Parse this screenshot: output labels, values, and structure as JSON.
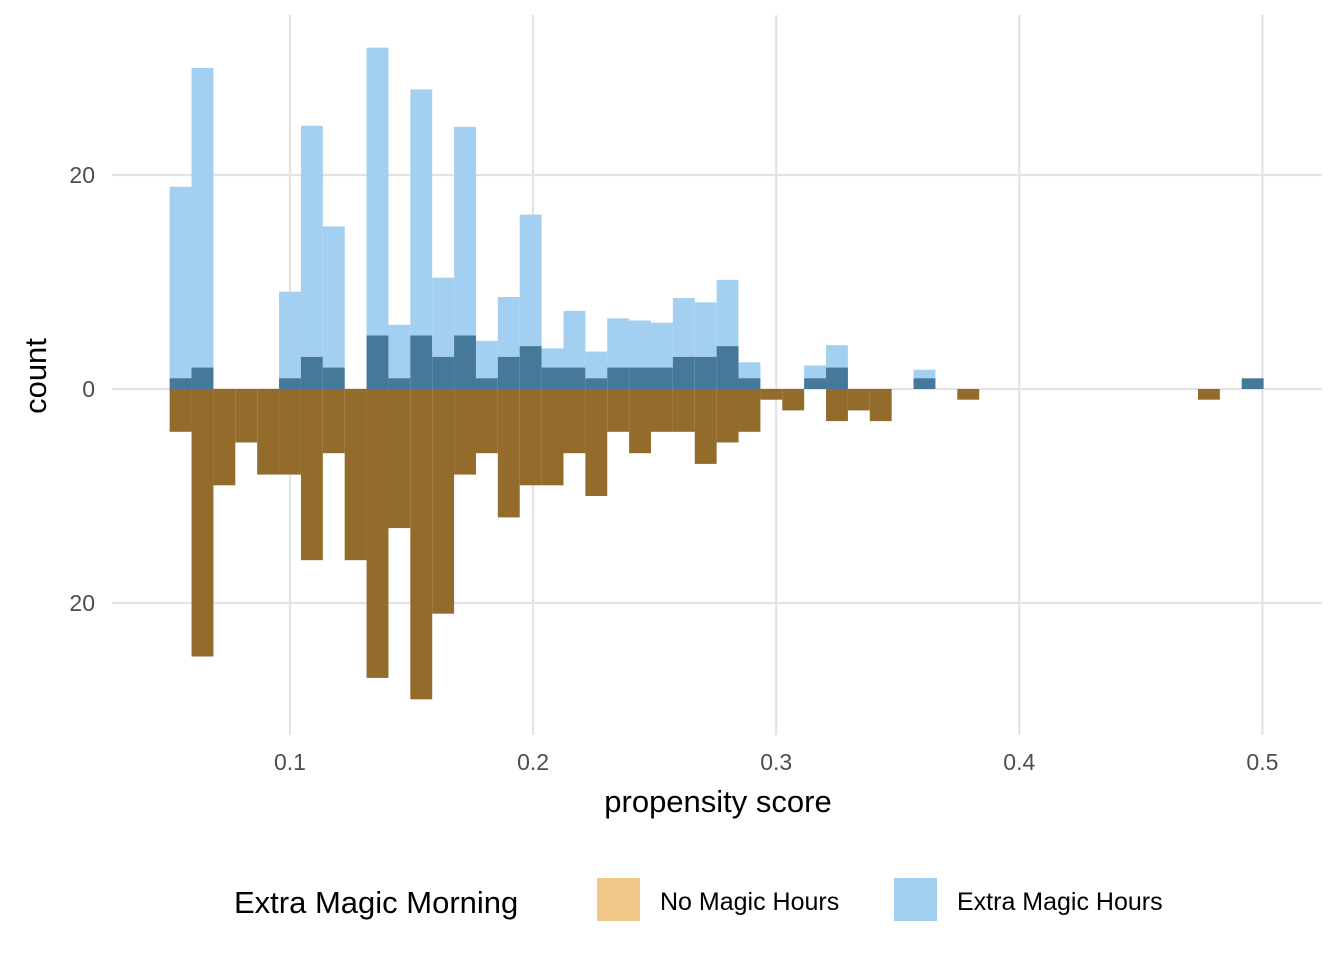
{
  "chart_data": {
    "type": "bar",
    "subtype": "mirrored histogram",
    "xlabel": "propensity score",
    "ylabel": "count",
    "xlim": [
      0.03,
      0.525
    ],
    "ylim": [
      -32,
      34
    ],
    "x_ticks": [
      0.1,
      0.2,
      0.3,
      0.4,
      0.5
    ],
    "x_tick_labels": [
      "0.1",
      "0.2",
      "0.3",
      "0.4",
      "0.5"
    ],
    "y_ticks": [
      20,
      0,
      -20
    ],
    "y_tick_labels": [
      "20",
      "0",
      "20"
    ],
    "grid": true,
    "bin_width": 0.009,
    "legend": {
      "title": "Extra Magic Morning",
      "position": "bottom",
      "items": [
        {
          "label": "No Magic Hours",
          "color": "#f0c988"
        },
        {
          "label": "Extra Magic Hours",
          "color": "#a3d0f0"
        }
      ]
    },
    "colors": {
      "weighted_top": "#a3d0f0",
      "unweighted_top": "#46789a",
      "unweighted_bottom": "#936b2b"
    },
    "bins_x_start": [
      0.0505,
      0.0595,
      0.0685,
      0.0775,
      0.0865,
      0.0955,
      0.1045,
      0.1135,
      0.1225,
      0.1315,
      0.1405,
      0.1495,
      0.1585,
      0.1675,
      0.1765,
      0.1855,
      0.1945,
      0.2035,
      0.2125,
      0.2215,
      0.2305,
      0.2395,
      0.2485,
      0.2575,
      0.2665,
      0.2755,
      0.2845,
      0.2935,
      0.3025,
      0.3115,
      0.3205,
      0.3295,
      0.3385,
      0.3475,
      0.3565,
      0.3655,
      0.3745,
      0.3835,
      0.4735,
      0.4915
    ],
    "series": [
      {
        "name": "Extra Magic Hours",
        "role": "weighted, above axis",
        "values": [
          18.9,
          30,
          0,
          0,
          0,
          9.1,
          24.6,
          15.2,
          0,
          31.9,
          6,
          28,
          10.4,
          24.5,
          4.5,
          8.6,
          16.3,
          3.8,
          7.3,
          3.5,
          6.6,
          6.4,
          6.2,
          8.5,
          8.1,
          10.2,
          2.5,
          0,
          0,
          2.2,
          4.1,
          0,
          0,
          0,
          1.8,
          0,
          0,
          0,
          0,
          0
        ]
      },
      {
        "name": "Extra Magic Hours",
        "role": "unweighted, above axis",
        "values": [
          1,
          2,
          0,
          0,
          0,
          1,
          3,
          2,
          0,
          5,
          1,
          5,
          3,
          5,
          1,
          3,
          4,
          2,
          2,
          1,
          2,
          2,
          2,
          3,
          3,
          4,
          1,
          0,
          0,
          1,
          2,
          0,
          0,
          0,
          1,
          0,
          0,
          0,
          0,
          1
        ]
      },
      {
        "name": "No Magic Hours",
        "role": "unweighted, below axis",
        "values": [
          4,
          25,
          9,
          5,
          8,
          8,
          16,
          6,
          16,
          27,
          13,
          29,
          21,
          8,
          6,
          12,
          9,
          9,
          6,
          10,
          4,
          6,
          4,
          4,
          7,
          5,
          4,
          1,
          2,
          0,
          3,
          2,
          3,
          0,
          0,
          0,
          1,
          0,
          1,
          0
        ]
      }
    ]
  }
}
